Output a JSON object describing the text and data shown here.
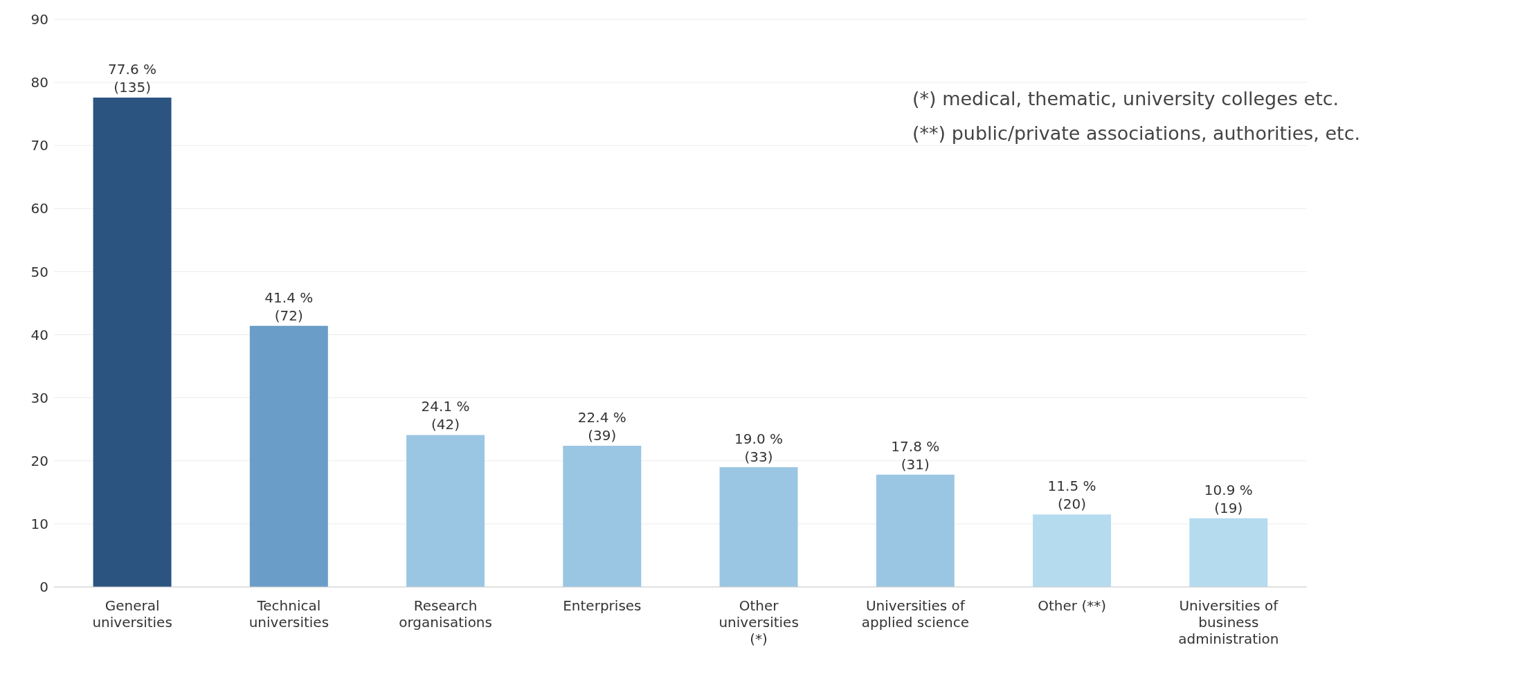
{
  "chart_data": {
    "type": "bar",
    "categories": [
      "General universities",
      "Technical universities",
      "Research organisations",
      "Enterprises",
      "Other universities (*)",
      "Universities of applied science",
      "Other (**)",
      "Universities of business administration"
    ],
    "values": [
      77.6,
      41.4,
      24.1,
      22.4,
      19.0,
      17.8,
      11.5,
      10.9
    ],
    "colors": [
      "#2b5580",
      "#6a9ec8",
      "#9ac6e3",
      "#9ac6e3",
      "#9ac6e3",
      "#9ac6e3",
      "#b5dbef",
      "#b5dbef"
    ],
    "value_labels": [
      "77.6 %\n(135)",
      "41.4 %\n(72)",
      "24.1 %\n(42)",
      "22.4 %\n(39)",
      "19.0 %\n(33)",
      "17.8 %\n(31)",
      "11.5 %\n(20)",
      "10.9 %\n(19)"
    ],
    "ylim": [
      0,
      90
    ],
    "yticks": [
      0,
      10,
      20,
      30,
      40,
      50,
      60,
      70,
      80,
      90
    ],
    "grid": "y",
    "annotations": [
      "(*) medical, thematic, university colleges etc.",
      "(**) public/private associations, authorities, etc."
    ]
  }
}
